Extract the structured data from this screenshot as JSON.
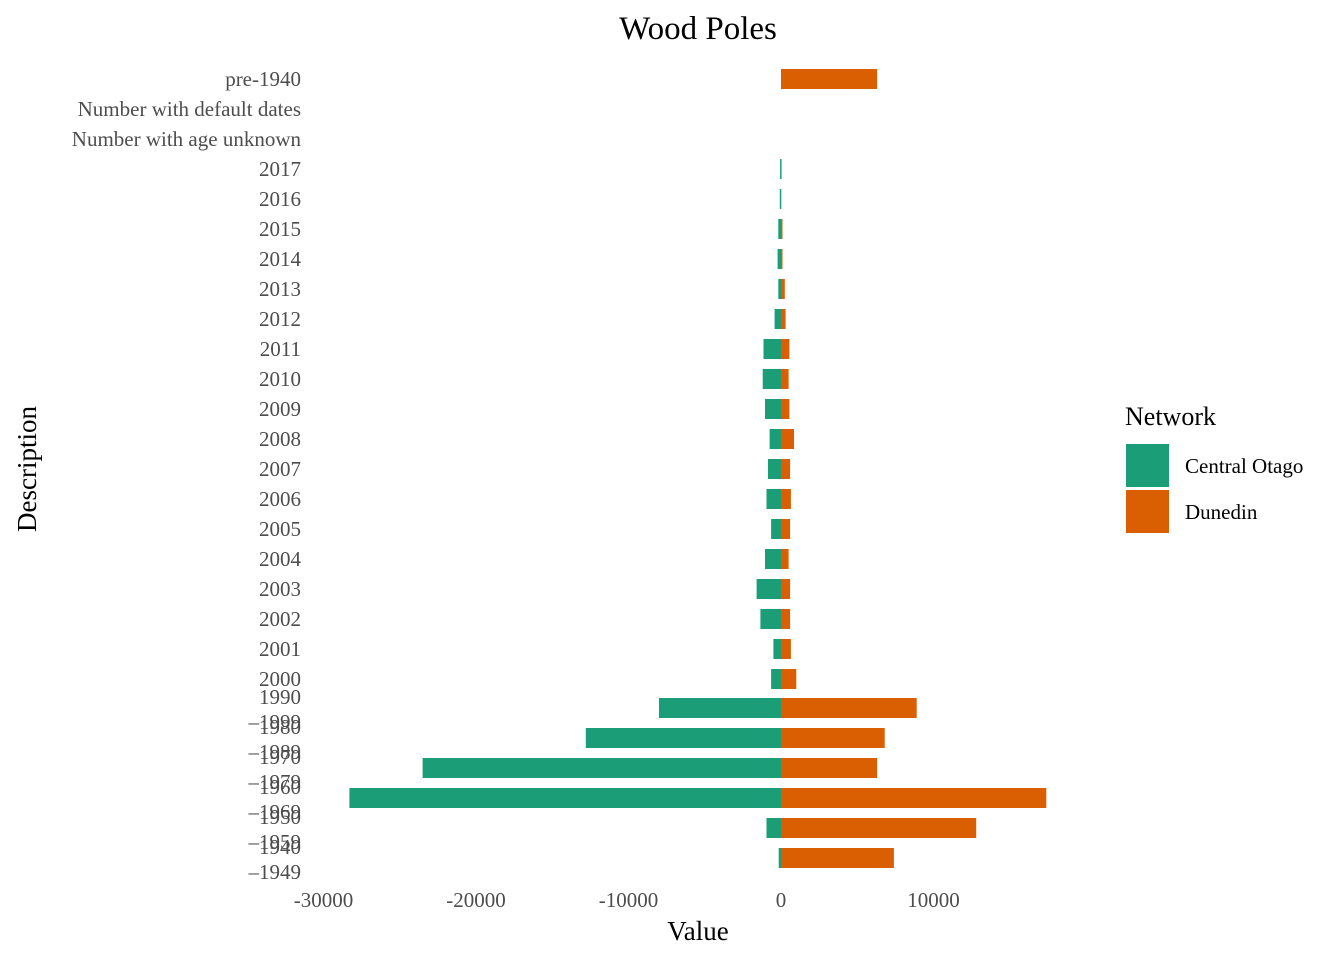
{
  "chart_data": {
    "type": "bar",
    "orientation": "horizontal",
    "stacking": "diverging",
    "title": "Wood Poles",
    "xlabel": "Value",
    "ylabel": "Description",
    "xlim": [
      -30000,
      17500
    ],
    "x_ticks": [
      -30000,
      -20000,
      -10000,
      0,
      10000
    ],
    "x_tick_labels": [
      "-30000",
      "-20000",
      "-10000",
      "0",
      "10000"
    ],
    "grid": false,
    "legend": {
      "title": "Network",
      "position": "right",
      "entries": [
        "Central Otago",
        "Dunedin"
      ]
    },
    "categories": [
      "pre-1940",
      "Number with default dates",
      "Number with age unknown",
      "2017",
      "2016",
      "2015",
      "2014",
      "2013",
      "2012",
      "2011",
      "2010",
      "2009",
      "2008",
      "2007",
      "2006",
      "2005",
      "2004",
      "2003",
      "2002",
      "2001",
      "2000",
      "1990–1999",
      "1980–1989",
      "1970–1979",
      "1960–1969",
      "1950–1959",
      "1940–1949"
    ],
    "category_labels": [
      "pre-1940",
      "Number with default dates",
      "Number with age unknown",
      "2017",
      "2016",
      "2015",
      "2014",
      "2013",
      "2012",
      "2011",
      "2010",
      "2009",
      "2008",
      "2007",
      "2006",
      "2005",
      "2004",
      "2003",
      "2002",
      "2001",
      "2000",
      "1990\n–1999",
      "1980\n–1989",
      "1970\n–1979",
      "1960\n–1969",
      "1950\n–1959",
      "1940\n–1949"
    ],
    "series": [
      {
        "name": "Central Otago",
        "color": "#1b9e77",
        "values": [
          0,
          0,
          0,
          -60,
          -80,
          -180,
          -220,
          -180,
          -420,
          -1150,
          -1200,
          -1050,
          -750,
          -850,
          -950,
          -650,
          -1050,
          -1600,
          -1350,
          -500,
          -650,
          -8000,
          -12800,
          -23500,
          -28300,
          -950,
          -150
        ]
      },
      {
        "name": "Dunedin",
        "color": "#d95f02",
        "values": [
          6300,
          0,
          0,
          0,
          0,
          80,
          100,
          250,
          300,
          550,
          500,
          550,
          850,
          600,
          650,
          600,
          500,
          600,
          600,
          650,
          1000,
          8900,
          6800,
          6300,
          17400,
          12800,
          7400
        ]
      }
    ]
  }
}
